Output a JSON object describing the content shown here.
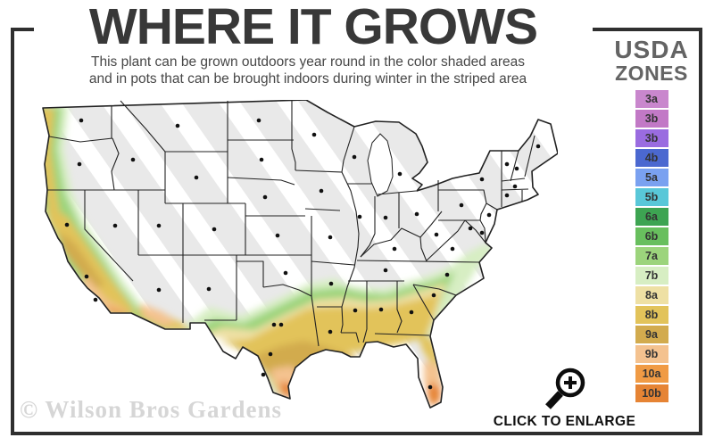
{
  "header": {
    "title": "WHERE IT GROWS",
    "subtitle_line1": "This plant can be grown outdoors year round in the color shaded areas",
    "subtitle_line2": "and in pots that can be brought indoors during winter in the striped area"
  },
  "legend": {
    "title_line1": "USDA",
    "title_line2": "ZONES",
    "zones": [
      {
        "label": "3a",
        "color": "#c987cd"
      },
      {
        "label": "3b",
        "color": "#c279c6"
      },
      {
        "label": "3b",
        "color": "#9a6ce0"
      },
      {
        "label": "4b",
        "color": "#4b68d0"
      },
      {
        "label": "5a",
        "color": "#7aa1f0"
      },
      {
        "label": "5b",
        "color": "#59c7d8"
      },
      {
        "label": "6a",
        "color": "#3da452"
      },
      {
        "label": "6b",
        "color": "#68bf5e"
      },
      {
        "label": "7a",
        "color": "#9cd47c"
      },
      {
        "label": "7b",
        "color": "#d7eec3"
      },
      {
        "label": "8a",
        "color": "#eee0a4"
      },
      {
        "label": "8b",
        "color": "#e2c35a"
      },
      {
        "label": "9a",
        "color": "#d2ab4e"
      },
      {
        "label": "9b",
        "color": "#f4c28f"
      },
      {
        "label": "10a",
        "color": "#f09b45"
      },
      {
        "label": "10b",
        "color": "#e68434"
      }
    ]
  },
  "map": {
    "region": "united-states-lower-48",
    "striped_fill": "#e9e9e9",
    "stripe_color": "#ffffff",
    "border_color": "#222222",
    "dot_color": "#111111"
  },
  "footer": {
    "watermark": "© Wilson Bros Gardens",
    "enlarge_label": "CLICK TO ENLARGE"
  }
}
